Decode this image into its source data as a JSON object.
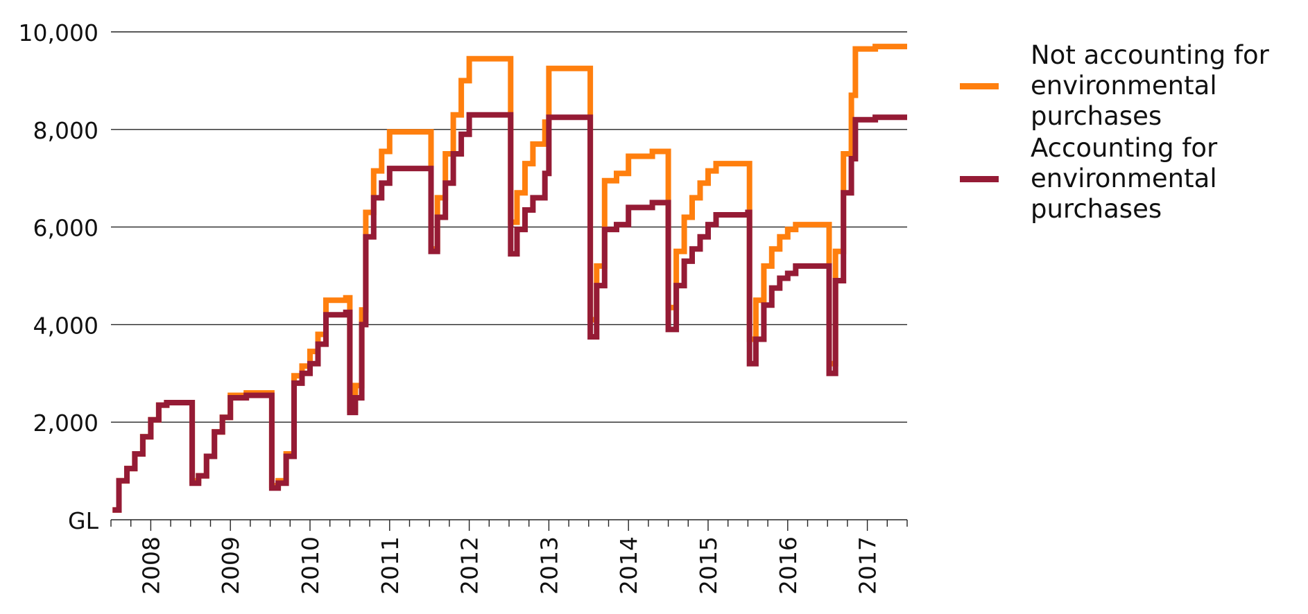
{
  "chart_data": {
    "type": "line",
    "title": "",
    "xlabel": "",
    "ylabel": "",
    "ylim": [
      0,
      10000
    ],
    "xlim": [
      2007.5,
      2017.5
    ],
    "yticks": [
      0,
      2000,
      4000,
      6000,
      8000,
      10000
    ],
    "ytick_labels": [
      "GL",
      "2,000",
      "4,000",
      "6,000",
      "8,000",
      "10,000"
    ],
    "xticks": [
      2008,
      2009,
      2010,
      2011,
      2012,
      2013,
      2014,
      2015,
      2016,
      2017
    ],
    "xtick_labels": [
      "2008",
      "2009",
      "2010",
      "2011",
      "2012",
      "2013",
      "2014",
      "2015",
      "2016",
      "2017"
    ],
    "grid": "horizontal",
    "legend_position": "right",
    "series": [
      {
        "name": "Not accounting for environmental purchases",
        "color": "#ff7f0e",
        "points": [
          [
            2007.52,
            200
          ],
          [
            2007.6,
            800
          ],
          [
            2007.7,
            1050
          ],
          [
            2007.8,
            1350
          ],
          [
            2007.9,
            1700
          ],
          [
            2008.0,
            2050
          ],
          [
            2008.1,
            2350
          ],
          [
            2008.2,
            2400
          ],
          [
            2008.5,
            2400
          ],
          [
            2008.52,
            800
          ],
          [
            2008.6,
            900
          ],
          [
            2008.7,
            1300
          ],
          [
            2008.8,
            1800
          ],
          [
            2008.9,
            2100
          ],
          [
            2009.0,
            2550
          ],
          [
            2009.2,
            2600
          ],
          [
            2009.5,
            2600
          ],
          [
            2009.52,
            700
          ],
          [
            2009.6,
            800
          ],
          [
            2009.7,
            1350
          ],
          [
            2009.8,
            2950
          ],
          [
            2009.9,
            3150
          ],
          [
            2010.0,
            3450
          ],
          [
            2010.1,
            3800
          ],
          [
            2010.2,
            4500
          ],
          [
            2010.45,
            4550
          ],
          [
            2010.5,
            2250
          ],
          [
            2010.57,
            2750
          ],
          [
            2010.65,
            4300
          ],
          [
            2010.7,
            6300
          ],
          [
            2010.8,
            7150
          ],
          [
            2010.9,
            7550
          ],
          [
            2011.0,
            7950
          ],
          [
            2011.5,
            7950
          ],
          [
            2011.52,
            5550
          ],
          [
            2011.6,
            6600
          ],
          [
            2011.7,
            7500
          ],
          [
            2011.8,
            8300
          ],
          [
            2011.9,
            9000
          ],
          [
            2012.0,
            9450
          ],
          [
            2012.5,
            9450
          ],
          [
            2012.52,
            6100
          ],
          [
            2012.6,
            6700
          ],
          [
            2012.7,
            7300
          ],
          [
            2012.8,
            7700
          ],
          [
            2012.95,
            8150
          ],
          [
            2013.0,
            9250
          ],
          [
            2013.5,
            9250
          ],
          [
            2013.52,
            4100
          ],
          [
            2013.6,
            5200
          ],
          [
            2013.7,
            6950
          ],
          [
            2013.85,
            7100
          ],
          [
            2014.0,
            7450
          ],
          [
            2014.2,
            7450
          ],
          [
            2014.3,
            7550
          ],
          [
            2014.48,
            7550
          ],
          [
            2014.5,
            4350
          ],
          [
            2014.6,
            5500
          ],
          [
            2014.7,
            6200
          ],
          [
            2014.8,
            6600
          ],
          [
            2014.9,
            6900
          ],
          [
            2015.0,
            7150
          ],
          [
            2015.1,
            7300
          ],
          [
            2015.5,
            7300
          ],
          [
            2015.52,
            3700
          ],
          [
            2015.6,
            4500
          ],
          [
            2015.7,
            5200
          ],
          [
            2015.8,
            5550
          ],
          [
            2015.9,
            5800
          ],
          [
            2016.0,
            5950
          ],
          [
            2016.1,
            6050
          ],
          [
            2016.5,
            6050
          ],
          [
            2016.52,
            3200
          ],
          [
            2016.6,
            5500
          ],
          [
            2016.7,
            7500
          ],
          [
            2016.8,
            8700
          ],
          [
            2016.85,
            9650
          ],
          [
            2017.0,
            9650
          ],
          [
            2017.1,
            9700
          ],
          [
            2017.5,
            9700
          ]
        ]
      },
      {
        "name": "Accounting for environmental purchases",
        "color": "#951b35",
        "points": [
          [
            2007.52,
            200
          ],
          [
            2007.6,
            800
          ],
          [
            2007.7,
            1050
          ],
          [
            2007.8,
            1350
          ],
          [
            2007.9,
            1700
          ],
          [
            2008.0,
            2050
          ],
          [
            2008.1,
            2350
          ],
          [
            2008.2,
            2400
          ],
          [
            2008.5,
            2400
          ],
          [
            2008.52,
            750
          ],
          [
            2008.6,
            900
          ],
          [
            2008.7,
            1300
          ],
          [
            2008.8,
            1800
          ],
          [
            2008.9,
            2100
          ],
          [
            2009.0,
            2500
          ],
          [
            2009.2,
            2550
          ],
          [
            2009.5,
            2550
          ],
          [
            2009.52,
            650
          ],
          [
            2009.6,
            750
          ],
          [
            2009.7,
            1300
          ],
          [
            2009.8,
            2800
          ],
          [
            2009.9,
            3000
          ],
          [
            2010.0,
            3200
          ],
          [
            2010.1,
            3600
          ],
          [
            2010.2,
            4200
          ],
          [
            2010.45,
            4250
          ],
          [
            2010.5,
            2200
          ],
          [
            2010.57,
            2500
          ],
          [
            2010.65,
            4000
          ],
          [
            2010.7,
            5800
          ],
          [
            2010.8,
            6600
          ],
          [
            2010.9,
            6900
          ],
          [
            2011.0,
            7200
          ],
          [
            2011.5,
            7200
          ],
          [
            2011.52,
            5500
          ],
          [
            2011.6,
            6200
          ],
          [
            2011.7,
            6900
          ],
          [
            2011.8,
            7500
          ],
          [
            2011.9,
            7900
          ],
          [
            2012.0,
            8300
          ],
          [
            2012.5,
            8300
          ],
          [
            2012.52,
            5450
          ],
          [
            2012.6,
            5950
          ],
          [
            2012.7,
            6350
          ],
          [
            2012.8,
            6600
          ],
          [
            2012.95,
            7100
          ],
          [
            2013.0,
            8250
          ],
          [
            2013.5,
            8250
          ],
          [
            2013.52,
            3750
          ],
          [
            2013.6,
            4800
          ],
          [
            2013.7,
            5950
          ],
          [
            2013.85,
            6050
          ],
          [
            2014.0,
            6400
          ],
          [
            2014.2,
            6400
          ],
          [
            2014.3,
            6500
          ],
          [
            2014.48,
            6500
          ],
          [
            2014.5,
            3900
          ],
          [
            2014.6,
            4800
          ],
          [
            2014.7,
            5300
          ],
          [
            2014.8,
            5550
          ],
          [
            2014.9,
            5800
          ],
          [
            2015.0,
            6050
          ],
          [
            2015.1,
            6250
          ],
          [
            2015.5,
            6300
          ],
          [
            2015.52,
            3200
          ],
          [
            2015.6,
            3700
          ],
          [
            2015.7,
            4400
          ],
          [
            2015.8,
            4750
          ],
          [
            2015.9,
            4950
          ],
          [
            2016.0,
            5050
          ],
          [
            2016.1,
            5200
          ],
          [
            2016.5,
            5200
          ],
          [
            2016.52,
            3000
          ],
          [
            2016.6,
            4900
          ],
          [
            2016.7,
            6700
          ],
          [
            2016.8,
            7400
          ],
          [
            2016.85,
            8200
          ],
          [
            2017.0,
            8200
          ],
          [
            2017.1,
            8250
          ],
          [
            2017.5,
            8250
          ]
        ]
      }
    ]
  }
}
